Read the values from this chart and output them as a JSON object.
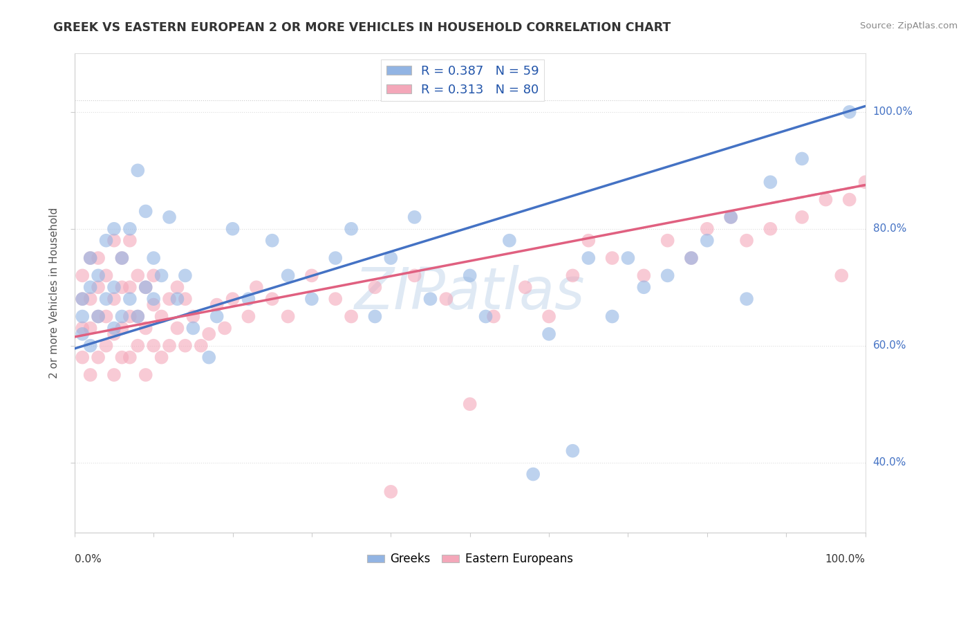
{
  "title": "GREEK VS EASTERN EUROPEAN 2 OR MORE VEHICLES IN HOUSEHOLD CORRELATION CHART",
  "source": "Source: ZipAtlas.com",
  "ylabel": "2 or more Vehicles in Household",
  "watermark_text": "ZIPatlas",
  "greek_color": "#92b4e3",
  "eastern_color": "#f4a7b9",
  "greek_line_color": "#4472c4",
  "eastern_line_color": "#e06080",
  "greek_R": 0.387,
  "greek_N": 59,
  "eastern_R": 0.313,
  "eastern_N": 80,
  "xlim": [
    0.0,
    1.0
  ],
  "ylim": [
    0.28,
    1.1
  ],
  "greek_scatter_x": [
    0.01,
    0.01,
    0.01,
    0.02,
    0.02,
    0.02,
    0.03,
    0.03,
    0.04,
    0.04,
    0.05,
    0.05,
    0.05,
    0.06,
    0.06,
    0.07,
    0.07,
    0.08,
    0.08,
    0.09,
    0.09,
    0.1,
    0.1,
    0.11,
    0.12,
    0.13,
    0.14,
    0.15,
    0.17,
    0.18,
    0.2,
    0.22,
    0.25,
    0.27,
    0.3,
    0.33,
    0.35,
    0.38,
    0.4,
    0.43,
    0.45,
    0.5,
    0.52,
    0.55,
    0.58,
    0.6,
    0.63,
    0.65,
    0.68,
    0.7,
    0.72,
    0.75,
    0.78,
    0.8,
    0.83,
    0.85,
    0.88,
    0.92,
    0.98
  ],
  "greek_scatter_y": [
    0.62,
    0.65,
    0.68,
    0.6,
    0.7,
    0.75,
    0.65,
    0.72,
    0.68,
    0.78,
    0.63,
    0.7,
    0.8,
    0.65,
    0.75,
    0.68,
    0.8,
    0.65,
    0.9,
    0.7,
    0.83,
    0.68,
    0.75,
    0.72,
    0.82,
    0.68,
    0.72,
    0.63,
    0.58,
    0.65,
    0.8,
    0.68,
    0.78,
    0.72,
    0.68,
    0.75,
    0.8,
    0.65,
    0.75,
    0.82,
    0.68,
    0.72,
    0.65,
    0.78,
    0.38,
    0.62,
    0.42,
    0.75,
    0.65,
    0.75,
    0.7,
    0.72,
    0.75,
    0.78,
    0.82,
    0.68,
    0.88,
    0.92,
    1.0
  ],
  "eastern_scatter_x": [
    0.01,
    0.01,
    0.01,
    0.01,
    0.02,
    0.02,
    0.02,
    0.02,
    0.03,
    0.03,
    0.03,
    0.03,
    0.04,
    0.04,
    0.04,
    0.05,
    0.05,
    0.05,
    0.05,
    0.06,
    0.06,
    0.06,
    0.06,
    0.07,
    0.07,
    0.07,
    0.07,
    0.08,
    0.08,
    0.08,
    0.09,
    0.09,
    0.09,
    0.1,
    0.1,
    0.1,
    0.11,
    0.11,
    0.12,
    0.12,
    0.13,
    0.13,
    0.14,
    0.14,
    0.15,
    0.16,
    0.17,
    0.18,
    0.19,
    0.2,
    0.22,
    0.23,
    0.25,
    0.27,
    0.3,
    0.33,
    0.35,
    0.38,
    0.4,
    0.43,
    0.47,
    0.5,
    0.53,
    0.57,
    0.6,
    0.63,
    0.65,
    0.68,
    0.72,
    0.75,
    0.78,
    0.8,
    0.83,
    0.85,
    0.88,
    0.92,
    0.95,
    0.97,
    0.98,
    1.0
  ],
  "eastern_scatter_y": [
    0.58,
    0.63,
    0.68,
    0.72,
    0.55,
    0.63,
    0.68,
    0.75,
    0.58,
    0.65,
    0.7,
    0.75,
    0.6,
    0.65,
    0.72,
    0.55,
    0.62,
    0.68,
    0.78,
    0.58,
    0.63,
    0.7,
    0.75,
    0.58,
    0.65,
    0.7,
    0.78,
    0.6,
    0.65,
    0.72,
    0.55,
    0.63,
    0.7,
    0.6,
    0.67,
    0.72,
    0.58,
    0.65,
    0.6,
    0.68,
    0.63,
    0.7,
    0.6,
    0.68,
    0.65,
    0.6,
    0.62,
    0.67,
    0.63,
    0.68,
    0.65,
    0.7,
    0.68,
    0.65,
    0.72,
    0.68,
    0.65,
    0.7,
    0.35,
    0.72,
    0.68,
    0.5,
    0.65,
    0.7,
    0.65,
    0.72,
    0.78,
    0.75,
    0.72,
    0.78,
    0.75,
    0.8,
    0.82,
    0.78,
    0.8,
    0.82,
    0.85,
    0.72,
    0.85,
    0.88
  ],
  "greek_line_x0": 0.0,
  "greek_line_y0": 0.595,
  "greek_line_x1": 1.0,
  "greek_line_y1": 1.01,
  "eastern_line_x0": 0.0,
  "eastern_line_y0": 0.615,
  "eastern_line_x1": 1.0,
  "eastern_line_y1": 0.875
}
